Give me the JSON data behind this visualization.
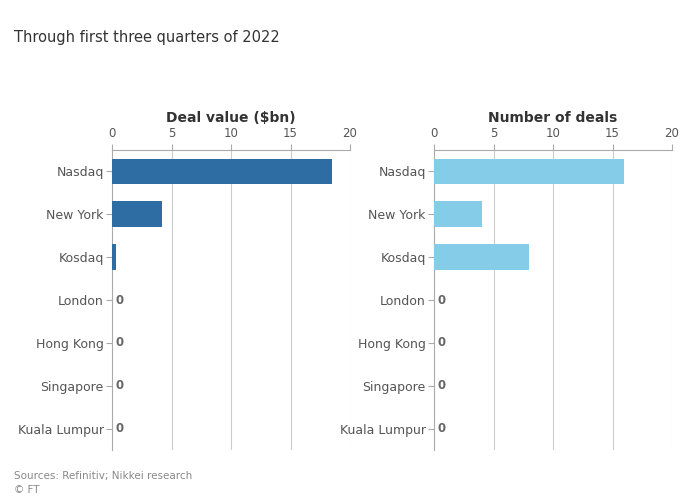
{
  "categories": [
    "Nasdaq",
    "New York",
    "Kosdaq",
    "London",
    "Hong Kong",
    "Singapore",
    "Kuala Lumpur"
  ],
  "deal_values": [
    18.5,
    4.2,
    0.3,
    0,
    0,
    0,
    0
  ],
  "num_deals": [
    16,
    4,
    8,
    0,
    0,
    0,
    0
  ],
  "deal_bar_color": "#2e6da4",
  "deals_bar_color": "#85cce8",
  "left_title": "Deal value ($bn)",
  "right_title": "Number of deals",
  "subtitle": "Through first three quarters of 2022",
  "left_xlim": [
    0,
    20
  ],
  "right_xlim": [
    0,
    20
  ],
  "left_xticks": [
    0,
    5,
    10,
    15,
    20
  ],
  "right_xticks": [
    0,
    5,
    10,
    15,
    20
  ],
  "source_text": "Sources: Refinitiv; Nikkei research\n© FT",
  "background_color": "#ffffff",
  "bar_height": 0.6,
  "zero_label_color": "#666666",
  "zero_label_fontsize": 8.5,
  "title_fontsize": 10,
  "tick_fontsize": 8.5,
  "category_fontsize": 9,
  "subtitle_fontsize": 10.5,
  "grid_color": "#cccccc",
  "axis_color": "#aaaaaa",
  "label_color": "#555555"
}
